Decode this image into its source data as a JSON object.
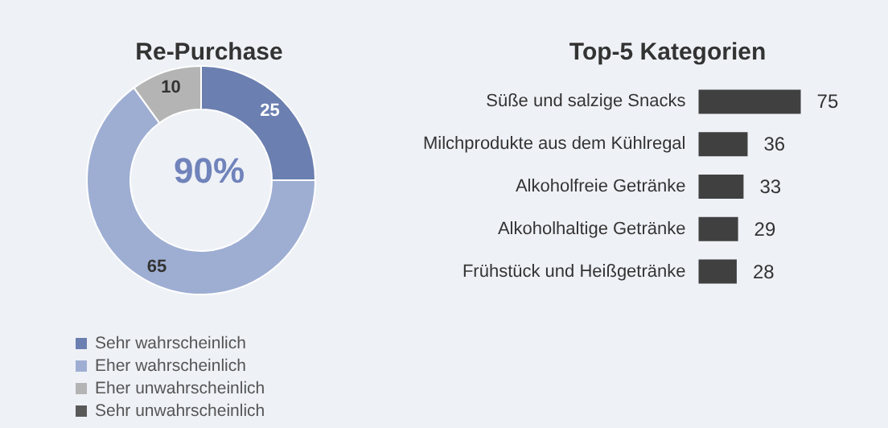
{
  "chart_data": [
    {
      "type": "donut",
      "title": "Re-Purchase",
      "categories": [
        "Sehr wahrscheinlich",
        "Eher wahrscheinlich",
        "Eher unwahrscheinlich",
        "Sehr unwahrscheinlich"
      ],
      "values": [
        25,
        65,
        10,
        0
      ],
      "value_labels": [
        "25",
        "65",
        "10",
        null
      ],
      "colors": [
        "#6b7fb0",
        "#9eaed3",
        "#b4b4b4",
        "#595959"
      ],
      "annotations": [
        "90%"
      ],
      "legend": "bottom left"
    },
    {
      "type": "bar",
      "orientation": "horizontal",
      "title": "Top-5 Kategorien",
      "categories": [
        "Süße und salzige Snacks",
        "Milchprodukte aus dem Kühlregal",
        "Alkoholfreie Getränke",
        "Alkoholhaltige Getränke",
        "Frühstück und Heißgetränke"
      ],
      "values": [
        75,
        36,
        33,
        29,
        28
      ],
      "color": "#404040",
      "data_labels": true
    }
  ]
}
